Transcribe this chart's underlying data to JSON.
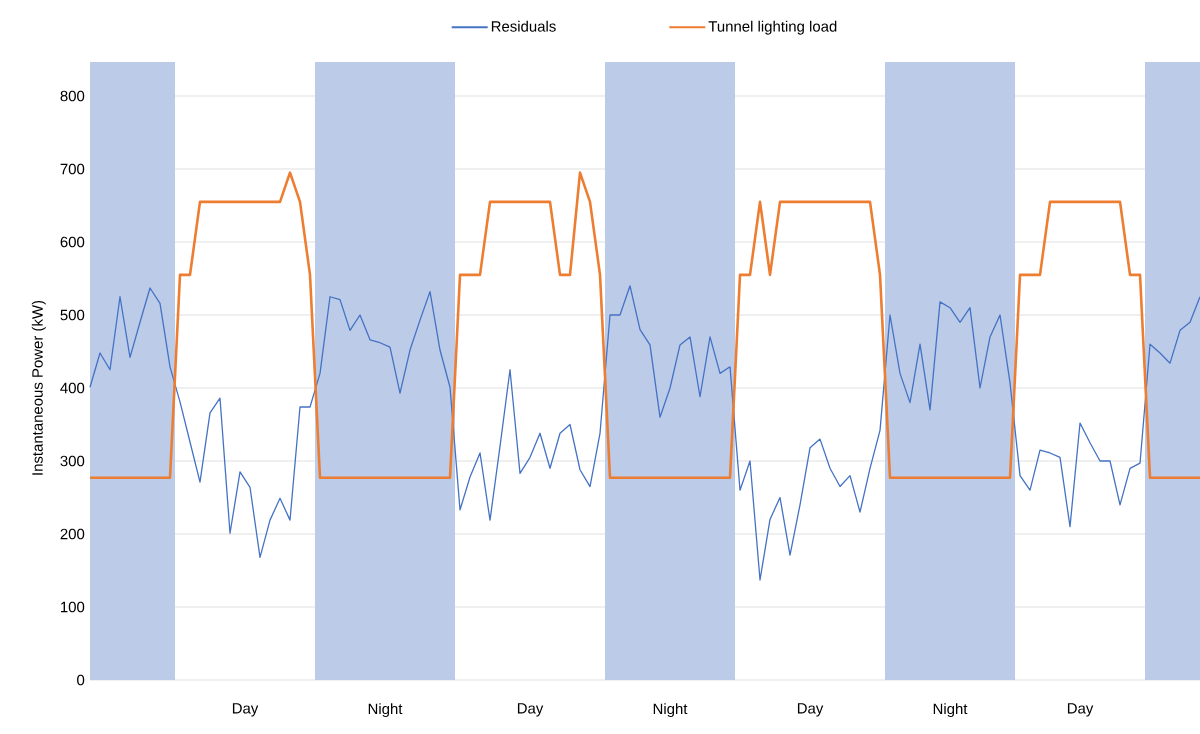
{
  "chart_data": {
    "type": "line",
    "ylabel": "Instantaneous Power (kW)",
    "categories": [
      null,
      null,
      null,
      null,
      null,
      null,
      null,
      null,
      null,
      null,
      null,
      null,
      null,
      null,
      null,
      null,
      null,
      null,
      null,
      null,
      null,
      null,
      null,
      null,
      null,
      null,
      null,
      null,
      null,
      null,
      null,
      null,
      null,
      null,
      null,
      null,
      null,
      null,
      null,
      null,
      null,
      null,
      null,
      null,
      null,
      null,
      null,
      null,
      null,
      null,
      null,
      null,
      null,
      null,
      null,
      null,
      null,
      null,
      null,
      null,
      null,
      null,
      null,
      null,
      null,
      null,
      null,
      null,
      null,
      null,
      null,
      null,
      null,
      null,
      null,
      null,
      null,
      null,
      null,
      null,
      null,
      null,
      null,
      null,
      null,
      null,
      null,
      null,
      null,
      null,
      null,
      null,
      null,
      null,
      null,
      null,
      null,
      null,
      null,
      null,
      null,
      null,
      null,
      null,
      null,
      null,
      null,
      null,
      null,
      null,
      null,
      null
    ],
    "ylim": [
      0,
      800
    ],
    "yticks": [
      0,
      100,
      200,
      300,
      400,
      500,
      600,
      700,
      800
    ],
    "grid": "y",
    "legend": "top",
    "annotations": [
      "Day",
      "Night",
      "Day",
      "Night",
      "Day",
      "Night",
      "Day"
    ],
    "series": [
      {
        "name": "Residuals",
        "color": "#4472c4",
        "values": [
          401,
          448,
          425,
          525,
          442,
          490,
          537,
          516,
          429,
          381,
          326,
          271,
          366,
          386,
          201,
          285,
          264,
          168,
          219,
          249,
          219,
          374,
          374,
          420,
          525,
          521,
          479,
          500,
          466,
          462,
          456,
          393,
          452,
          493,
          532,
          452,
          401,
          233,
          278,
          311,
          219,
          320,
          425,
          283,
          305,
          338,
          290,
          338,
          350,
          288,
          265,
          338,
          500,
          500,
          540,
          480,
          459,
          360,
          400,
          459,
          470,
          388,
          470,
          420,
          429,
          260,
          300,
          137,
          220,
          250,
          171,
          240,
          318,
          330,
          290,
          265,
          280,
          230,
          290,
          342,
          500,
          420,
          380,
          460,
          370,
          518,
          510,
          490,
          510,
          400,
          470,
          500,
          407,
          280,
          260,
          315,
          311,
          305,
          210,
          352,
          325,
          300,
          300,
          240,
          290,
          297,
          460,
          448,
          434,
          479,
          490,
          525
        ]
      },
      {
        "name": "Tunnel lighting load",
        "color": "#ed7d31",
        "values": [
          277,
          277,
          277,
          277,
          277,
          277,
          277,
          277,
          277,
          555,
          555,
          655,
          655,
          655,
          655,
          655,
          655,
          655,
          655,
          655,
          695,
          655,
          555,
          277,
          277,
          277,
          277,
          277,
          277,
          277,
          277,
          277,
          277,
          277,
          277,
          277,
          277,
          555,
          555,
          555,
          655,
          655,
          655,
          655,
          655,
          655,
          655,
          555,
          555,
          695,
          655,
          555,
          277,
          277,
          277,
          277,
          277,
          277,
          277,
          277,
          277,
          277,
          277,
          277,
          277,
          555,
          555,
          655,
          555,
          655,
          655,
          655,
          655,
          655,
          655,
          655,
          655,
          655,
          655,
          555,
          277,
          277,
          277,
          277,
          277,
          277,
          277,
          277,
          277,
          277,
          277,
          277,
          277,
          555,
          555,
          555,
          655,
          655,
          655,
          655,
          655,
          655,
          655,
          655,
          555,
          555,
          277,
          277,
          277,
          277,
          277,
          277
        ]
      }
    ]
  }
}
